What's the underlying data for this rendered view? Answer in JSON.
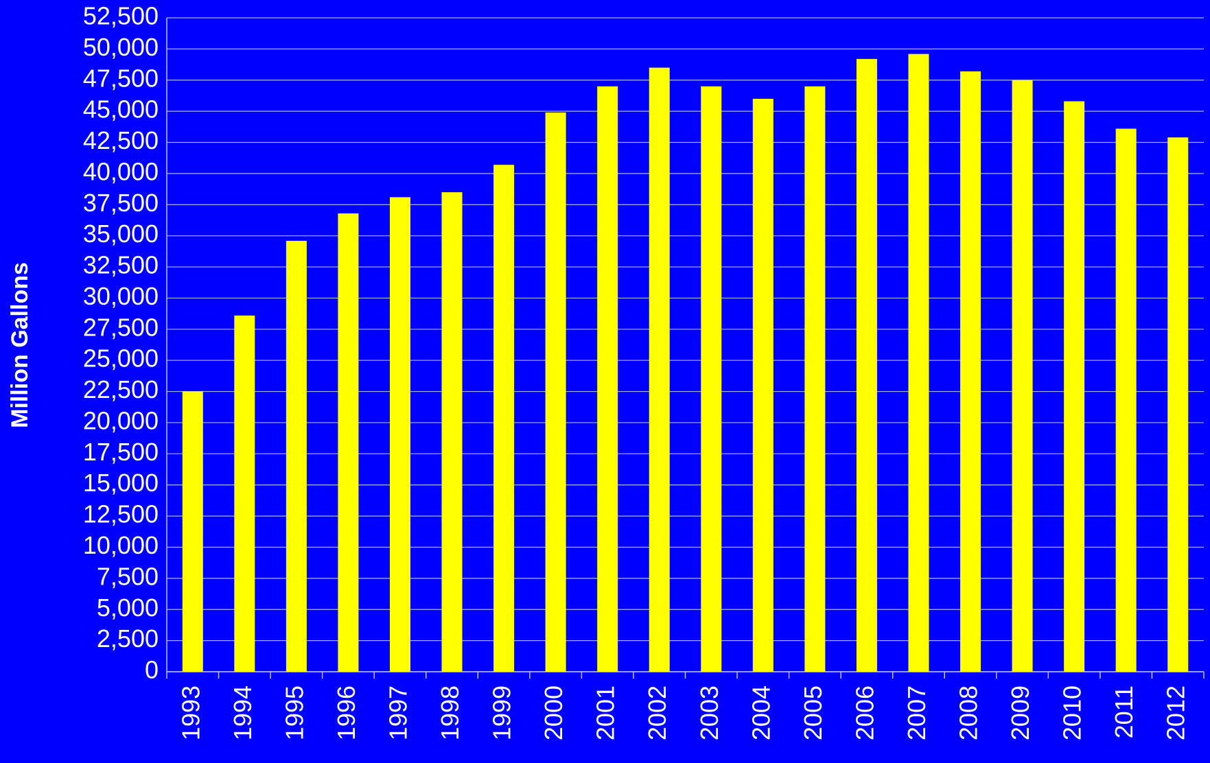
{
  "chart_data": {
    "type": "bar",
    "y_label": "Million Gallons",
    "categories": [
      "1993",
      "1994",
      "1995",
      "1996",
      "1997",
      "1998",
      "1999",
      "2000",
      "2001",
      "2002",
      "2003",
      "2004",
      "2005",
      "2006",
      "2007",
      "2008",
      "2009",
      "2010",
      "2011",
      "2012"
    ],
    "values": [
      22500,
      28600,
      34600,
      36800,
      38100,
      38500,
      40700,
      44900,
      47000,
      48500,
      47000,
      46000,
      47000,
      49200,
      49600,
      48200,
      47500,
      45800,
      43600,
      42900
    ],
    "color": "#ffff00",
    "ylim": [
      0,
      52500
    ],
    "yticks": [
      0,
      {
        "value": 2500,
        "label": "2,500"
      },
      {
        "value": 5000,
        "label": "5,000"
      },
      {
        "value": 7500,
        "label": "7,500"
      },
      {
        "value": 10000,
        "label": "10,000"
      },
      {
        "value": 12500,
        "label": "12,500"
      },
      {
        "value": 15000,
        "label": "15,000"
      },
      {
        "value": 17500,
        "label": "17,500"
      },
      {
        "value": 20000,
        "label": "20,000"
      },
      {
        "value": 22500,
        "label": "22,500"
      },
      {
        "value": 25000,
        "label": "25,000"
      },
      {
        "value": 27500,
        "label": "27,500"
      },
      {
        "value": 30000,
        "label": "30,000"
      },
      {
        "value": 32500,
        "label": "32,500"
      },
      {
        "value": 35000,
        "label": "35,000"
      },
      {
        "value": 37500,
        "label": "37,500"
      },
      {
        "value": 40000,
        "label": "40,000"
      },
      {
        "value": 42500,
        "label": "42,500"
      },
      {
        "value": 45000,
        "label": "45,000"
      },
      {
        "value": 47500,
        "label": "47,500"
      },
      {
        "value": 50000,
        "label": "50,000"
      },
      {
        "value": 52500,
        "label": "52,500"
      }
    ],
    "grid": true
  }
}
